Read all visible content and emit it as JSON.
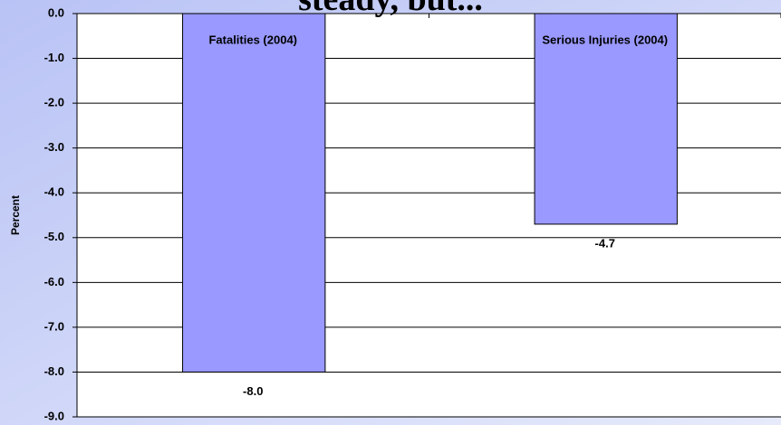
{
  "chart_data": {
    "type": "bar",
    "title": "steady, but...",
    "y_label": "Percent",
    "categories": [
      "Fatalities (2004)",
      "Serious Injuries (2004)"
    ],
    "values": [
      -8.0,
      -4.7
    ],
    "value_labels": [
      "-8.0",
      "-4.7"
    ],
    "color": "#9999ff",
    "ylim": [
      -9,
      0
    ],
    "yticks": [
      {
        "value": 0,
        "label": "0.0"
      },
      {
        "value": -1,
        "label": "-1.0"
      },
      {
        "value": -2,
        "label": "-2.0"
      },
      {
        "value": -3,
        "label": "-3.0"
      },
      {
        "value": -4,
        "label": "-4.0"
      },
      {
        "value": -5,
        "label": "-5.0"
      },
      {
        "value": -6,
        "label": "-6.0"
      },
      {
        "value": -7,
        "label": "-7.0"
      },
      {
        "value": -8,
        "label": "-8.0"
      },
      {
        "value": -9,
        "label": "-9.0"
      }
    ],
    "grid": true
  }
}
